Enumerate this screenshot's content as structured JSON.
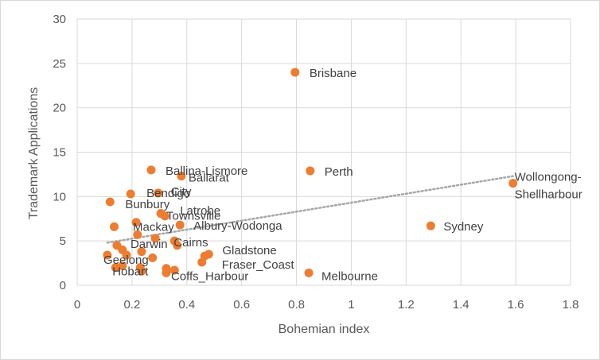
{
  "chart_data": {
    "type": "scatter",
    "title": "",
    "xlabel": "Bohemian index",
    "ylabel": "Trademark Applications",
    "xlim": [
      0,
      1.8
    ],
    "ylim": [
      0,
      30
    ],
    "x_ticks": [
      0,
      0.2,
      0.4,
      0.6,
      0.8,
      1,
      1.2,
      1.4,
      1.6,
      1.8
    ],
    "y_ticks": [
      0,
      5,
      10,
      15,
      20,
      25,
      30
    ],
    "x_tick_labels": [
      "0",
      "0.2",
      "0.4",
      "0.6",
      "0.8",
      "1",
      "1.2",
      "1.4",
      "1.6",
      "1.8"
    ],
    "y_tick_labels": [
      "0",
      "5",
      "10",
      "15",
      "20",
      "25",
      "30"
    ],
    "grid": "vertical and horizontal major gridlines",
    "legend": "none",
    "marker_color": "#ED7D31",
    "trendline": {
      "type": "linear",
      "style": "dotted",
      "color": "#A6A6A6",
      "x": [
        0.11,
        1.59
      ],
      "y": [
        4.8,
        12.3
      ]
    },
    "labeled_points": [
      {
        "label": "Brisbane",
        "x": 0.795,
        "y": 24.0
      },
      {
        "label": "Perth",
        "x": 0.85,
        "y": 12.9
      },
      {
        "label": "Ballina-Lismore",
        "x": 0.27,
        "y": 13.0
      },
      {
        "label": "Ballarat",
        "x": 0.38,
        "y": 12.3
      },
      {
        "label": "Wollongong-Shellharbour",
        "x": 1.59,
        "y": 11.5
      },
      {
        "label": "Bendigo",
        "x": 0.195,
        "y": 10.3
      },
      {
        "label": "City",
        "x": 0.295,
        "y": 10.4
      },
      {
        "label": "Bunbury",
        "x": 0.12,
        "y": 9.4
      },
      {
        "label": "Townsville",
        "x": 0.305,
        "y": 8.1
      },
      {
        "label": "Latrobe",
        "x": 0.32,
        "y": 7.8
      },
      {
        "label": "Mackay",
        "x": 0.215,
        "y": 7.1
      },
      {
        "label": "Albury-Wodonga",
        "x": 0.375,
        "y": 6.8
      },
      {
        "label": "Sydney",
        "x": 1.29,
        "y": 6.7
      },
      {
        "label": "Cairns",
        "x": 0.355,
        "y": 5.0
      },
      {
        "label": "Darwin",
        "x": 0.145,
        "y": 4.5
      },
      {
        "label": "Gladstone",
        "x": 0.48,
        "y": 3.5
      },
      {
        "label": "Geelong",
        "x": 0.18,
        "y": 3.4
      },
      {
        "label": "Fraser_Coast",
        "x": 0.455,
        "y": 2.6
      },
      {
        "label": "Hobart",
        "x": 0.14,
        "y": 2.0
      },
      {
        "label": "Coffs_Harbour",
        "x": 0.325,
        "y": 1.4
      },
      {
        "label": "Melbourne",
        "x": 0.845,
        "y": 1.4
      }
    ],
    "unlabeled_points": [
      {
        "x": 0.135,
        "y": 6.6
      },
      {
        "x": 0.22,
        "y": 5.7
      },
      {
        "x": 0.285,
        "y": 5.3
      },
      {
        "x": 0.365,
        "y": 4.5
      },
      {
        "x": 0.165,
        "y": 4.0
      },
      {
        "x": 0.235,
        "y": 3.8
      },
      {
        "x": 0.11,
        "y": 3.4
      },
      {
        "x": 0.275,
        "y": 3.1
      },
      {
        "x": 0.465,
        "y": 3.3
      },
      {
        "x": 0.165,
        "y": 2.2
      },
      {
        "x": 0.23,
        "y": 2.0
      },
      {
        "x": 0.325,
        "y": 1.9
      },
      {
        "x": 0.235,
        "y": 1.6
      },
      {
        "x": 0.355,
        "y": 1.7
      }
    ]
  }
}
